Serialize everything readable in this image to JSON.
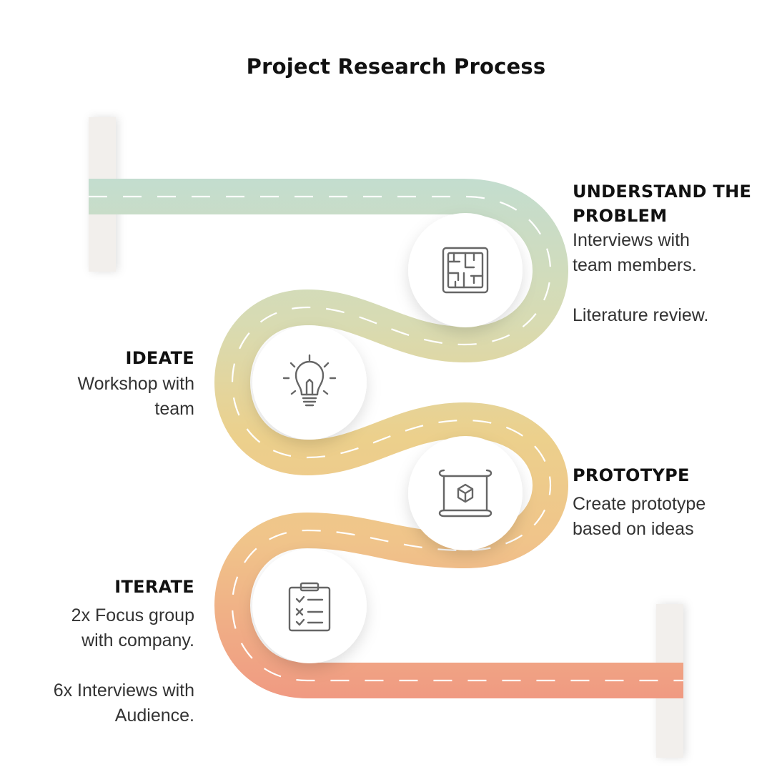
{
  "title": "Project Research Process",
  "colors": {
    "road_start": "#c3ddcf",
    "road_mid1": "#d8dbb2",
    "road_mid2": "#ecd08c",
    "road_mid3": "#f0c48a",
    "road_end": "#f09a82",
    "post": "#f2efec",
    "dash": "#ffffff"
  },
  "steps": [
    {
      "heading": "UNDERSTAND THE\nPROBLEM",
      "desc": "Interviews with\nteam members.\n\nLiterature review.",
      "icon": "maze-icon"
    },
    {
      "heading": "IDEATE",
      "desc": "Workshop with\nteam",
      "icon": "lightbulb-icon"
    },
    {
      "heading": "PROTOTYPE",
      "desc": "Create prototype\nbased on ideas",
      "icon": "blueprint-cube-icon"
    },
    {
      "heading": "ITERATE",
      "desc": "2x Focus group\nwith company.\n\n6x Interviews with\nAudience.",
      "icon": "checklist-clipboard-icon"
    }
  ]
}
